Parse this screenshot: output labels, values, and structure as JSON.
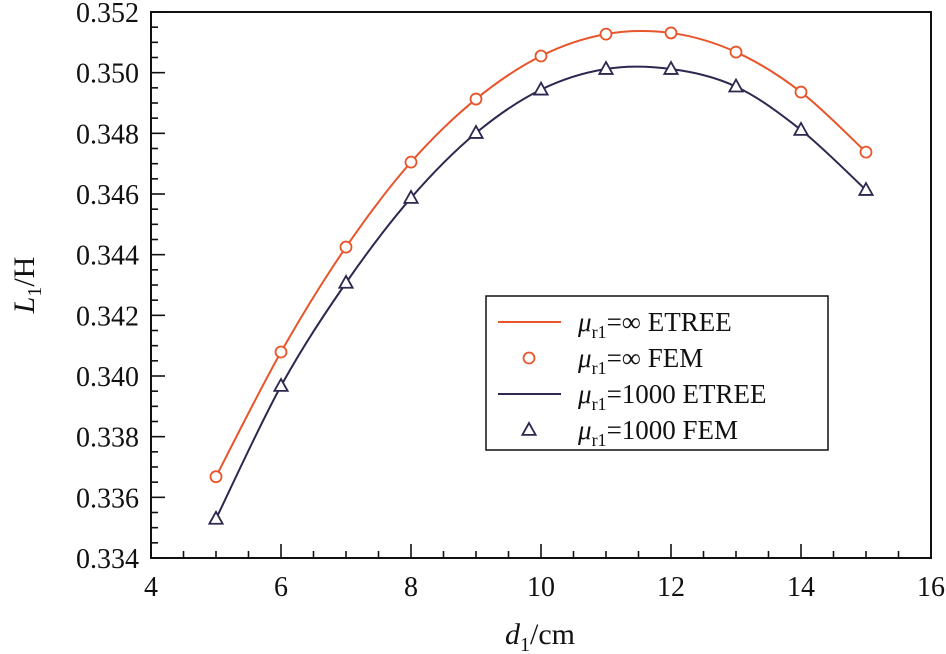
{
  "chart_data": {
    "type": "line",
    "title": "",
    "xlabel": {
      "main": "d",
      "sub": "1",
      "unit": "/cm"
    },
    "ylabel": {
      "main": "L",
      "sub": "1",
      "unit": "/H"
    },
    "xlim": [
      4,
      16
    ],
    "ylim": [
      0.334,
      0.352
    ],
    "xticks": [
      "4",
      "6",
      "8",
      "10",
      "12",
      "14",
      "16"
    ],
    "yticks": [
      "0.334",
      "0.336",
      "0.338",
      "0.340",
      "0.342",
      "0.344",
      "0.346",
      "0.348",
      "0.350",
      "0.352"
    ],
    "grid": false,
    "legend_position": "center-right",
    "x": [
      5,
      6,
      7,
      8,
      9,
      10,
      11,
      12,
      13,
      14,
      15
    ],
    "series": [
      {
        "name": "μr1=∞ ETREE",
        "prefix": "μ",
        "sub": "r1",
        "suffix": "=∞ ETREE",
        "style": "line",
        "color": "#e8552b",
        "values": [
          0.33668,
          0.34079,
          0.34425,
          0.34705,
          0.34913,
          0.35055,
          0.35127,
          0.35131,
          0.35068,
          0.34936,
          0.34738
        ]
      },
      {
        "name": "μr1=∞ FEM",
        "prefix": "μ",
        "sub": "r1",
        "suffix": "=∞ FEM",
        "style": "circle",
        "color": "#e8552b",
        "values": [
          0.33668,
          0.34079,
          0.34425,
          0.34705,
          0.34913,
          0.35055,
          0.35127,
          0.35131,
          0.35068,
          0.34936,
          0.34738
        ]
      },
      {
        "name": "μr1=1000 ETREE",
        "prefix": "μ",
        "sub": "r1",
        "suffix": "=1000 ETREE",
        "style": "line",
        "color": "#2e2750",
        "values": [
          0.33529,
          0.33967,
          0.34307,
          0.34587,
          0.34801,
          0.34944,
          0.35012,
          0.35012,
          0.34954,
          0.34811,
          0.34613
        ]
      },
      {
        "name": "μr1=1000 FEM",
        "prefix": "μ",
        "sub": "r1",
        "suffix": "=1000 FEM",
        "style": "triangle",
        "color": "#2e2750",
        "values": [
          0.33529,
          0.33967,
          0.34307,
          0.34587,
          0.34801,
          0.34944,
          0.35012,
          0.35012,
          0.34954,
          0.34811,
          0.34613
        ]
      }
    ]
  }
}
